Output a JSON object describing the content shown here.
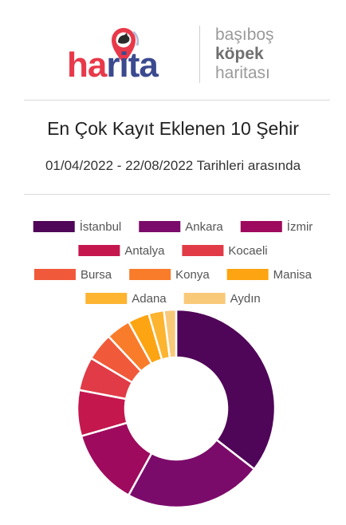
{
  "logo": {
    "wordmark_a": "ha",
    "wordmark_b": "rita",
    "tagline": [
      "başıboş",
      "köpek",
      "haritası"
    ],
    "colors": {
      "red": "#e8394a",
      "blue": "#3b4a8f"
    }
  },
  "title": "En Çok Kayıt Eklenen 10 Şehir",
  "subtitle": "01/04/2022 - 22/08/2022 Tarihleri arasında",
  "chart_data": {
    "type": "pie",
    "donut": true,
    "legend_position": "top",
    "categories": [
      "İstanbul",
      "Ankara",
      "İzmir",
      "Antalya",
      "Kocaeli",
      "Bursa",
      "Konya",
      "Manisa",
      "Adana",
      "Aydın"
    ],
    "values": [
      35.5,
      22.5,
      12.5,
      7.5,
      5.5,
      4.5,
      4,
      3.5,
      2.5,
      2
    ],
    "colors": [
      "#4f0558",
      "#7b0b6b",
      "#9e0a5d",
      "#c4174e",
      "#e03b46",
      "#f05a3a",
      "#f97c2a",
      "#fda412",
      "#fcb431",
      "#f9c97a"
    ]
  }
}
